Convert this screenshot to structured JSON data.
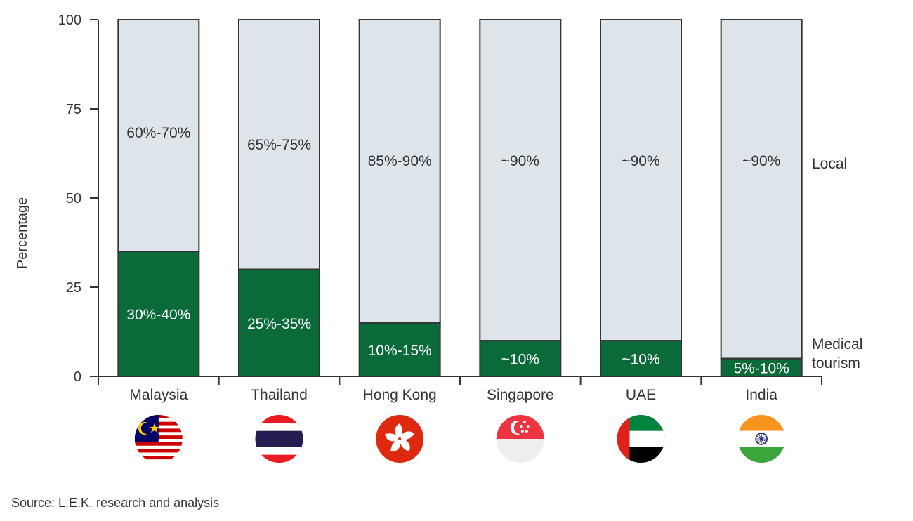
{
  "chart_data": {
    "type": "bar",
    "stacked": true,
    "ylabel": "Percentage",
    "ylim": [
      0,
      100
    ],
    "yticks": [
      0,
      25,
      50,
      75,
      100
    ],
    "categories": [
      "Malaysia",
      "Thailand",
      "Hong Kong",
      "Singapore",
      "UAE",
      "India"
    ],
    "series": [
      {
        "name": "Medical tourism",
        "color": "#0b6a3a",
        "values": [
          35,
          30,
          15,
          10,
          10,
          5
        ],
        "labels": [
          "30%-40%",
          "25%-35%",
          "10%-15%",
          "~10%",
          "~10%",
          "5%-10%"
        ]
      },
      {
        "name": "Local",
        "color": "#dde4ea",
        "values": [
          65,
          70,
          85,
          90,
          90,
          95
        ],
        "labels": [
          "60%-70%",
          "65%-75%",
          "85%-90%",
          "~90%",
          "~90%",
          "~90%"
        ]
      }
    ],
    "legend": {
      "local": "Local",
      "medical_line1": "Medical",
      "medical_line2": "tourism"
    },
    "flags": [
      "malaysia-flag-icon",
      "thailand-flag-icon",
      "hong-kong-flag-icon",
      "singapore-flag-icon",
      "uae-flag-icon",
      "india-flag-icon"
    ]
  },
  "source": "Source: L.E.K. research and analysis"
}
